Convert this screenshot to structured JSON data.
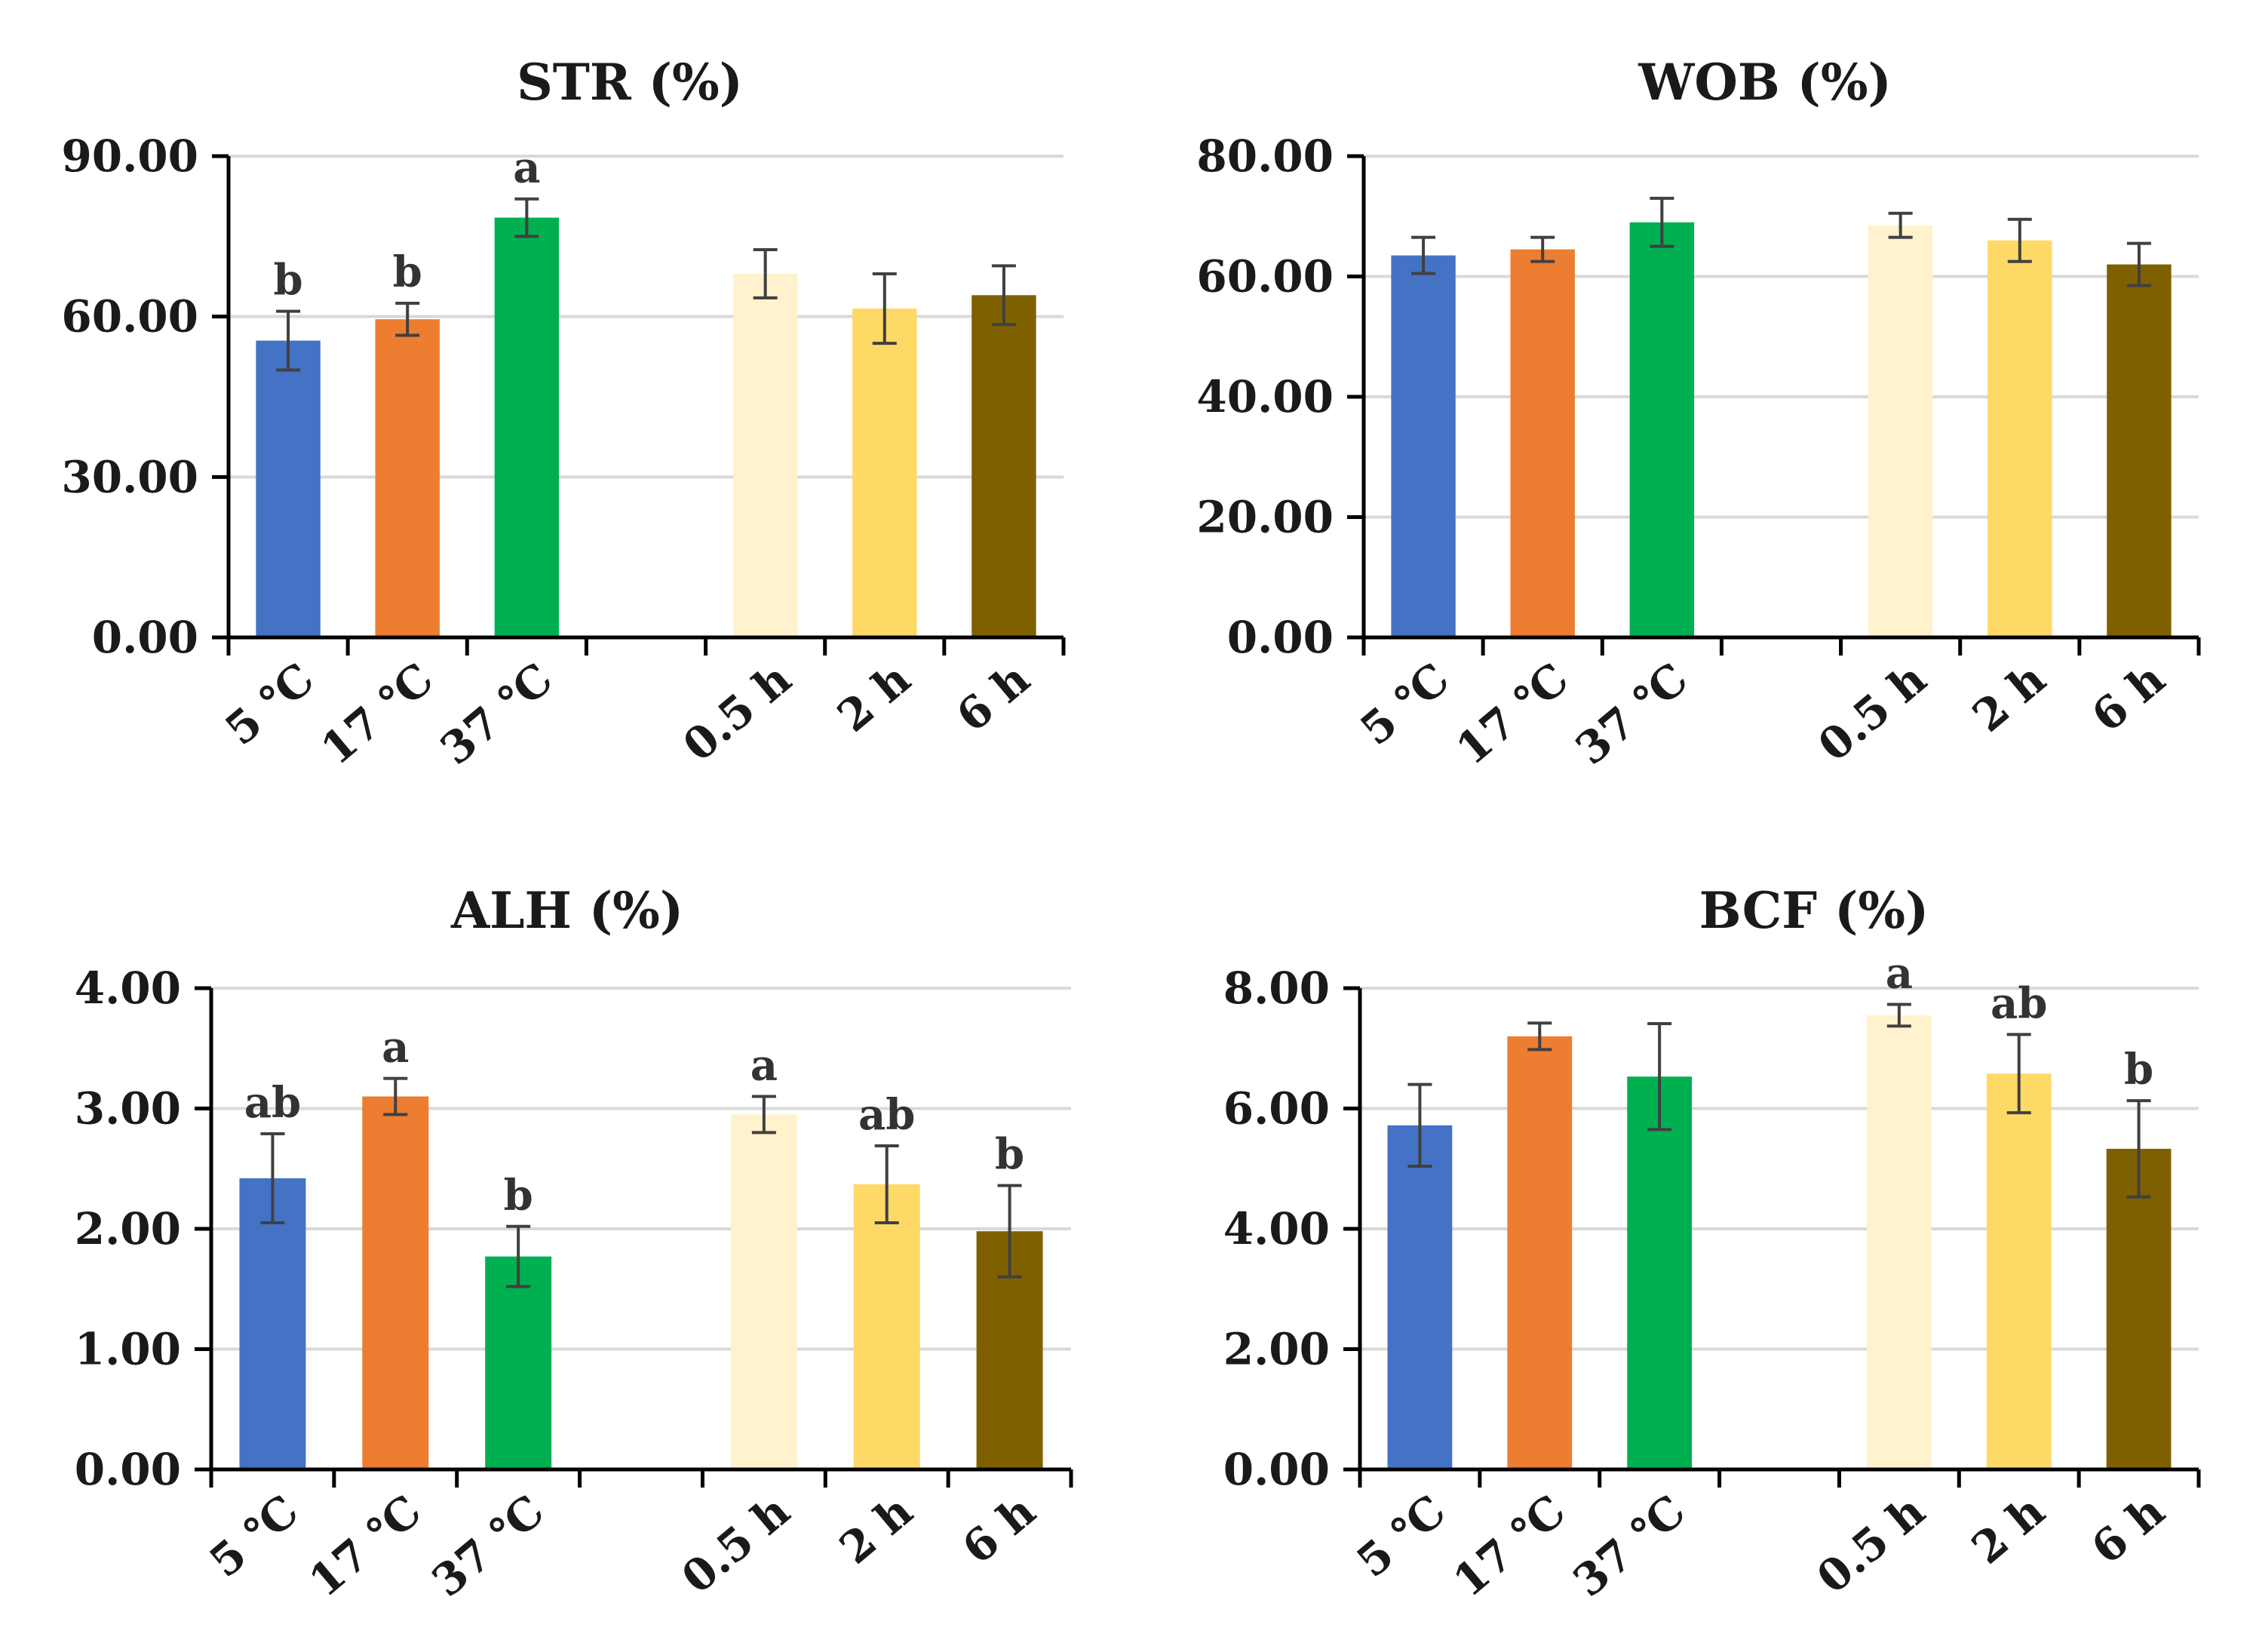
{
  "chart_data": [
    {
      "type": "bar",
      "title": "STR (%)",
      "categories": [
        "5 ℃",
        "17 ℃",
        "37 ℃",
        "",
        "0.5 h",
        "2 h",
        "6 h"
      ],
      "values": [
        55.5,
        59.5,
        78.5,
        null,
        68.0,
        61.5,
        64.0
      ],
      "errors": [
        5.5,
        3.0,
        3.5,
        null,
        4.5,
        6.5,
        5.5
      ],
      "significance": [
        "b",
        "b",
        "a",
        "",
        "",
        "",
        ""
      ],
      "colors": [
        "#4472C4",
        "#ED7D31",
        "#00B050",
        "",
        "#FFF2CC",
        "#FFD966",
        "#7F6000"
      ],
      "ylim": [
        0,
        90
      ],
      "yticks": [
        "0.00",
        "30.00",
        "60.00",
        "90.00"
      ],
      "xlabel": "",
      "ylabel": "",
      "grid": true
    },
    {
      "type": "bar",
      "title": "WOB (%)",
      "categories": [
        "5 ℃",
        "17 ℃",
        "37 ℃",
        "",
        "0.5 h",
        "2 h",
        "6 h"
      ],
      "values": [
        63.5,
        64.5,
        69.0,
        null,
        68.5,
        66.0,
        62.0
      ],
      "errors": [
        3.0,
        2.0,
        4.0,
        null,
        2.0,
        3.5,
        3.5
      ],
      "significance": [
        "",
        "",
        "",
        "",
        "",
        "",
        ""
      ],
      "colors": [
        "#4472C4",
        "#ED7D31",
        "#00B050",
        "",
        "#FFF2CC",
        "#FFD966",
        "#7F6000"
      ],
      "ylim": [
        0,
        80
      ],
      "yticks": [
        "0.00",
        "20.00",
        "40.00",
        "60.00",
        "80.00"
      ],
      "xlabel": "",
      "ylabel": "",
      "grid": true
    },
    {
      "type": "bar",
      "title": "ALH (%)",
      "categories": [
        "5 ℃",
        "17 ℃",
        "37 ℃",
        "",
        "0.5 h",
        "2 h",
        "6 h"
      ],
      "values": [
        2.42,
        3.1,
        1.77,
        null,
        2.95,
        2.37,
        1.98
      ],
      "errors": [
        0.37,
        0.15,
        0.25,
        null,
        0.15,
        0.32,
        0.38
      ],
      "significance": [
        "ab",
        "a",
        "b",
        "",
        "a",
        "ab",
        "b"
      ],
      "colors": [
        "#4472C4",
        "#ED7D31",
        "#00B050",
        "",
        "#FFF2CC",
        "#FFD966",
        "#7F6000"
      ],
      "ylim": [
        0,
        4
      ],
      "yticks": [
        "0.00",
        "1.00",
        "2.00",
        "3.00",
        "4.00"
      ],
      "xlabel": "",
      "ylabel": "",
      "grid": true
    },
    {
      "type": "bar",
      "title": "BCF (%)",
      "categories": [
        "5 ℃",
        "17 ℃",
        "37 ℃",
        "",
        "0.5 h",
        "2 h",
        "6 h"
      ],
      "values": [
        5.72,
        7.2,
        6.53,
        null,
        7.55,
        6.58,
        5.33
      ],
      "errors": [
        0.68,
        0.22,
        0.88,
        null,
        0.18,
        0.65,
        0.8
      ],
      "significance": [
        "",
        "",
        "",
        "",
        "a",
        "ab",
        "b"
      ],
      "colors": [
        "#4472C4",
        "#ED7D31",
        "#00B050",
        "",
        "#FFF2CC",
        "#FFD966",
        "#7F6000"
      ],
      "ylim": [
        0,
        8
      ],
      "yticks": [
        "0.00",
        "2.00",
        "4.00",
        "6.00",
        "8.00"
      ],
      "xlabel": "",
      "ylabel": "",
      "grid": true
    }
  ]
}
